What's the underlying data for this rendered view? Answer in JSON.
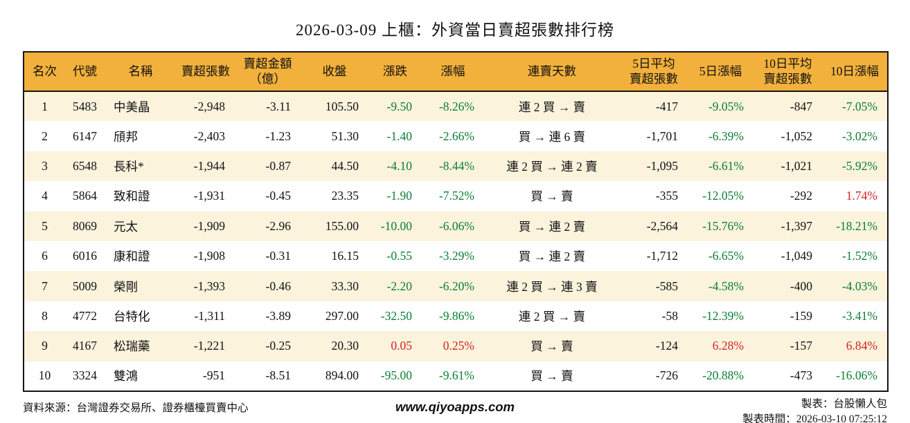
{
  "colors": {
    "header_bg": "#f2b13c",
    "row_alt_bg": "#fcf3dd",
    "down_green": "#0a7d32",
    "up_red": "#d32020",
    "border": "#151515"
  },
  "chart_data": {
    "type": "table",
    "title": "2026-03-09 上櫃：外資當日賣超張數排行榜",
    "columns": [
      {
        "key": "rank",
        "label": "名次",
        "align": "center",
        "signcolor": false
      },
      {
        "key": "code",
        "label": "代號",
        "align": "center",
        "signcolor": false
      },
      {
        "key": "name",
        "label": "名稱",
        "align": "left",
        "signcolor": false
      },
      {
        "key": "sell_shares",
        "label": "賣超張數",
        "align": "right",
        "signcolor": false
      },
      {
        "key": "sell_amount",
        "label": "賣超金額\n（億）",
        "align": "right",
        "signcolor": false
      },
      {
        "key": "close",
        "label": "收盤",
        "align": "right",
        "signcolor": false
      },
      {
        "key": "change",
        "label": "漲跌",
        "align": "right",
        "signcolor": true
      },
      {
        "key": "change_pct",
        "label": "漲幅",
        "align": "right",
        "signcolor": true
      },
      {
        "key": "streak",
        "label": "連賣天數",
        "align": "center",
        "signcolor": false
      },
      {
        "key": "avg5",
        "label": "5日平均\n賣超張數",
        "align": "right",
        "signcolor": false
      },
      {
        "key": "pct5",
        "label": "5日漲幅",
        "align": "right",
        "signcolor": true
      },
      {
        "key": "avg10",
        "label": "10日平均\n賣超張數",
        "align": "right",
        "signcolor": false
      },
      {
        "key": "pct10",
        "label": "10日漲幅",
        "align": "right",
        "signcolor": true
      }
    ],
    "rows": [
      {
        "rank": "1",
        "code": "5483",
        "name": "中美晶",
        "sell_shares": "-2,948",
        "sell_amount": "-3.11",
        "close": "105.50",
        "change": "-9.50",
        "change_pct": "-8.26%",
        "streak": "連 2 買 → 賣",
        "avg5": "-417",
        "pct5": "-9.05%",
        "avg10": "-847",
        "pct10": "-7.05%"
      },
      {
        "rank": "2",
        "code": "6147",
        "name": "頎邦",
        "sell_shares": "-2,403",
        "sell_amount": "-1.23",
        "close": "51.30",
        "change": "-1.40",
        "change_pct": "-2.66%",
        "streak": "買 → 連 6 賣",
        "avg5": "-1,701",
        "pct5": "-6.39%",
        "avg10": "-1,052",
        "pct10": "-3.02%"
      },
      {
        "rank": "3",
        "code": "6548",
        "name": "長科*",
        "sell_shares": "-1,944",
        "sell_amount": "-0.87",
        "close": "44.50",
        "change": "-4.10",
        "change_pct": "-8.44%",
        "streak": "連 2 買 → 連 2 賣",
        "avg5": "-1,095",
        "pct5": "-6.61%",
        "avg10": "-1,021",
        "pct10": "-5.92%"
      },
      {
        "rank": "4",
        "code": "5864",
        "name": "致和證",
        "sell_shares": "-1,931",
        "sell_amount": "-0.45",
        "close": "23.35",
        "change": "-1.90",
        "change_pct": "-7.52%",
        "streak": "買 → 賣",
        "avg5": "-355",
        "pct5": "-12.05%",
        "avg10": "-292",
        "pct10": "1.74%"
      },
      {
        "rank": "5",
        "code": "8069",
        "name": "元太",
        "sell_shares": "-1,909",
        "sell_amount": "-2.96",
        "close": "155.00",
        "change": "-10.00",
        "change_pct": "-6.06%",
        "streak": "買 → 連 2 賣",
        "avg5": "-2,564",
        "pct5": "-15.76%",
        "avg10": "-1,397",
        "pct10": "-18.21%"
      },
      {
        "rank": "6",
        "code": "6016",
        "name": "康和證",
        "sell_shares": "-1,908",
        "sell_amount": "-0.31",
        "close": "16.15",
        "change": "-0.55",
        "change_pct": "-3.29%",
        "streak": "買 → 連 2 賣",
        "avg5": "-1,712",
        "pct5": "-6.65%",
        "avg10": "-1,049",
        "pct10": "-1.52%"
      },
      {
        "rank": "7",
        "code": "5009",
        "name": "榮剛",
        "sell_shares": "-1,393",
        "sell_amount": "-0.46",
        "close": "33.30",
        "change": "-2.20",
        "change_pct": "-6.20%",
        "streak": "連 2 買 → 連 3 賣",
        "avg5": "-585",
        "pct5": "-4.58%",
        "avg10": "-400",
        "pct10": "-4.03%"
      },
      {
        "rank": "8",
        "code": "4772",
        "name": "台特化",
        "sell_shares": "-1,311",
        "sell_amount": "-3.89",
        "close": "297.00",
        "change": "-32.50",
        "change_pct": "-9.86%",
        "streak": "連 2 買 → 賣",
        "avg5": "-58",
        "pct5": "-12.39%",
        "avg10": "-159",
        "pct10": "-3.41%"
      },
      {
        "rank": "9",
        "code": "4167",
        "name": "松瑞藥",
        "sell_shares": "-1,221",
        "sell_amount": "-0.25",
        "close": "20.30",
        "change": "0.05",
        "change_pct": "0.25%",
        "streak": "買 → 賣",
        "avg5": "-124",
        "pct5": "6.28%",
        "avg10": "-157",
        "pct10": "6.84%"
      },
      {
        "rank": "10",
        "code": "3324",
        "name": "雙鴻",
        "sell_shares": "-951",
        "sell_amount": "-8.51",
        "close": "894.00",
        "change": "-95.00",
        "change_pct": "-9.61%",
        "streak": "買 → 賣",
        "avg5": "-726",
        "pct5": "-20.88%",
        "avg10": "-473",
        "pct10": "-16.06%"
      }
    ]
  },
  "footer": {
    "source": "資料來源：台灣證券交易所、證券櫃檯買賣中心",
    "website": "www.qiyoapps.com",
    "maker": "製表：台股懶人包",
    "made_at": "製表時間：2026-03-10 07:25:12"
  }
}
